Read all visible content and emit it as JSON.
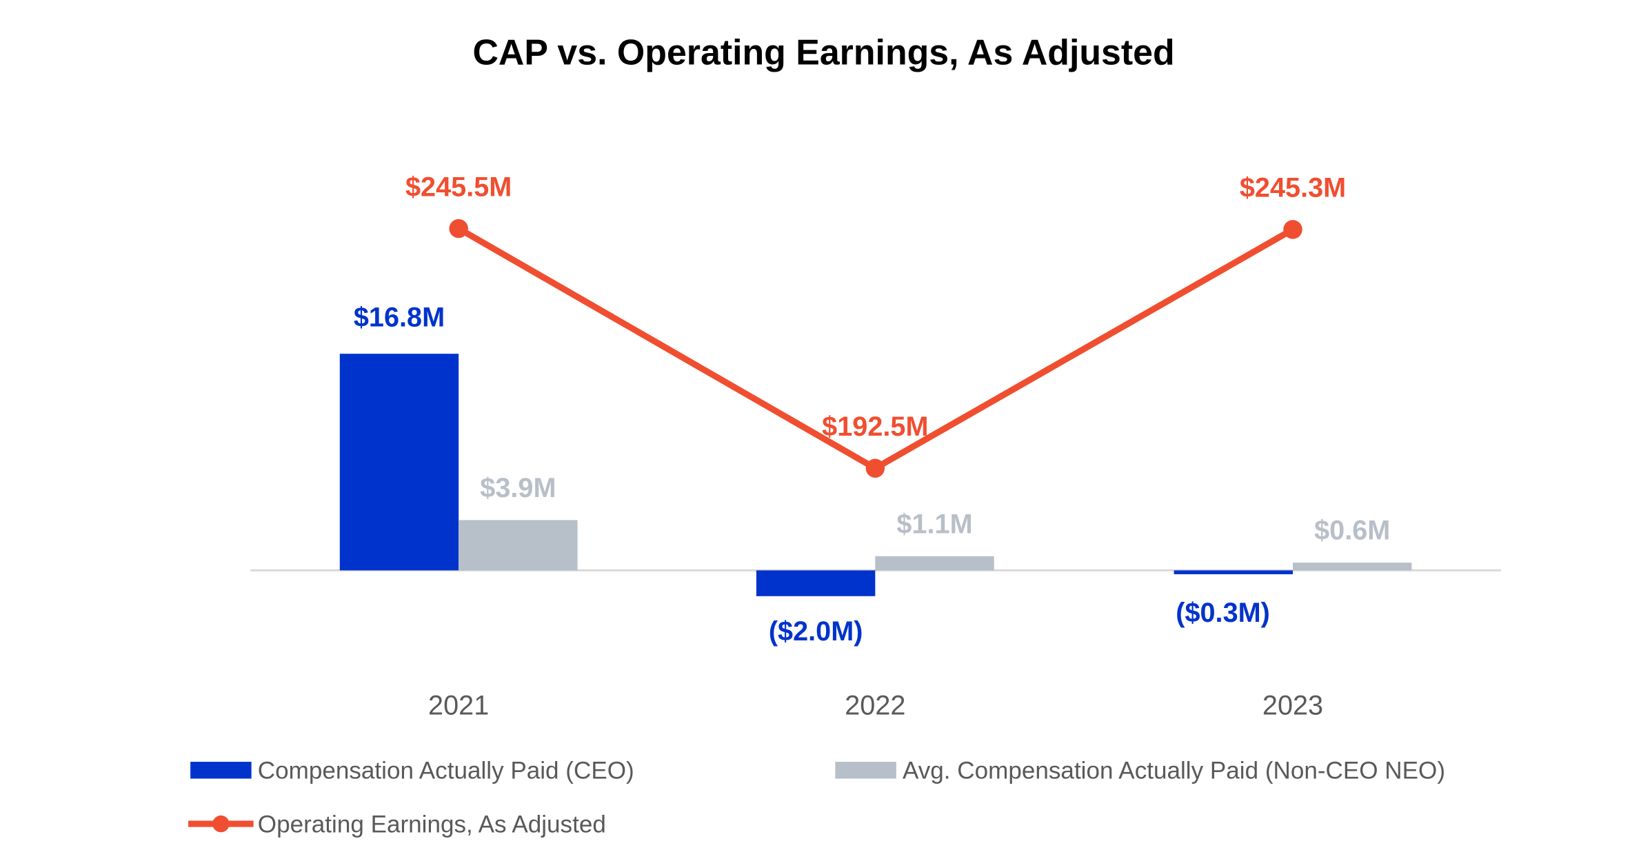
{
  "chart_data": {
    "type": "bar+line",
    "title": "CAP vs. Operating Earnings, As Adjusted",
    "categories": [
      "2021",
      "2022",
      "2023"
    ],
    "series": [
      {
        "name": "Compensation Actually Paid (CEO)",
        "type": "bar",
        "color": "#0033CC",
        "values": [
          16.8,
          -2.0,
          -0.3
        ],
        "labels": [
          "$16.8M",
          "($2.0M)",
          "($0.3M)"
        ]
      },
      {
        "name": "Avg. Compensation Actually Paid (Non-CEO NEO)",
        "type": "bar",
        "color": "#B7BFC8",
        "values": [
          3.9,
          1.1,
          0.6
        ],
        "labels": [
          "$3.9M",
          "$1.1M",
          "$0.6M"
        ]
      },
      {
        "name": "Operating Earnings, As Adjusted",
        "type": "line",
        "color": "#F04E30",
        "values": [
          245.5,
          192.5,
          245.3
        ],
        "labels": [
          "$245.5M",
          "$192.5M",
          "$245.3M"
        ]
      }
    ],
    "units": "$M",
    "grid": false,
    "legend": "bottom"
  }
}
